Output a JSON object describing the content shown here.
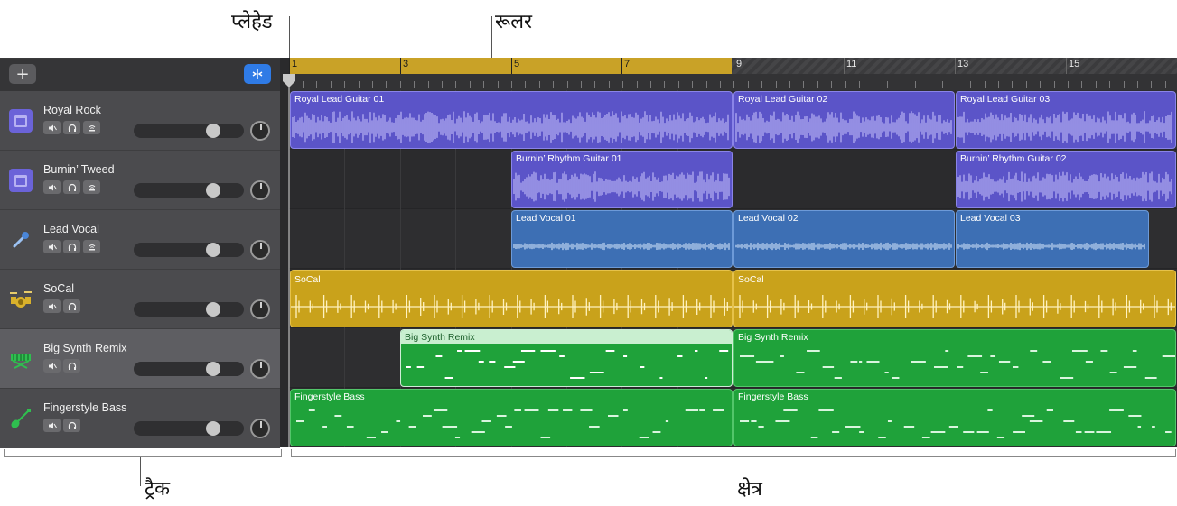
{
  "callouts": {
    "playhead": "प्लेहेड",
    "ruler": "रूलर",
    "tracks": "ट्रैक",
    "workspace": "क्षेत्र"
  },
  "toolbar": {
    "add_label": "+",
    "smart_controls_icon": "smart-controls-icon"
  },
  "ruler": {
    "bars": [
      "1",
      "3",
      "5",
      "7",
      "9",
      "11",
      "13",
      "15"
    ]
  },
  "tracks": [
    {
      "name": "Royal Rock",
      "icon": "amp-icon",
      "color": "#6b63d8"
    },
    {
      "name": "Burnin’ Tweed",
      "icon": "amp-icon",
      "color": "#6b63d8"
    },
    {
      "name": "Lead Vocal",
      "icon": "microphone-icon",
      "color": "#4a86d8"
    },
    {
      "name": "SoCal",
      "icon": "drum-kit-icon",
      "color": "#d9b12b"
    },
    {
      "name": "Big Synth Remix",
      "icon": "keyboard-icon",
      "color": "#2fbf4f"
    },
    {
      "name": "Fingerstyle Bass",
      "icon": "bass-guitar-icon",
      "color": "#2fbf4f"
    }
  ],
  "regions": {
    "royal_rock": [
      "Royal Lead Guitar 01",
      "Royal Lead Guitar 02",
      "Royal Lead Guitar 03"
    ],
    "burnin_tweed": [
      "Burnin’ Rhythm Guitar 01",
      "Burnin’ Rhythm Guitar 02"
    ],
    "lead_vocal": [
      "Lead Vocal 01",
      "Lead Vocal 02",
      "Lead Vocal 03"
    ],
    "socal": [
      "SoCal",
      "SoCal"
    ],
    "big_synth": [
      "Big Synth Remix",
      "Big Synth Remix"
    ],
    "bass": [
      "Fingerstyle Bass",
      "Fingerstyle Bass"
    ]
  },
  "colors": {
    "purple": "#5b54c8",
    "blue": "#3d6fb4",
    "gold": "#c9a21b",
    "green": "#1fa23a",
    "cycle": "#c9a227",
    "selected_button": "#2f7be6"
  }
}
